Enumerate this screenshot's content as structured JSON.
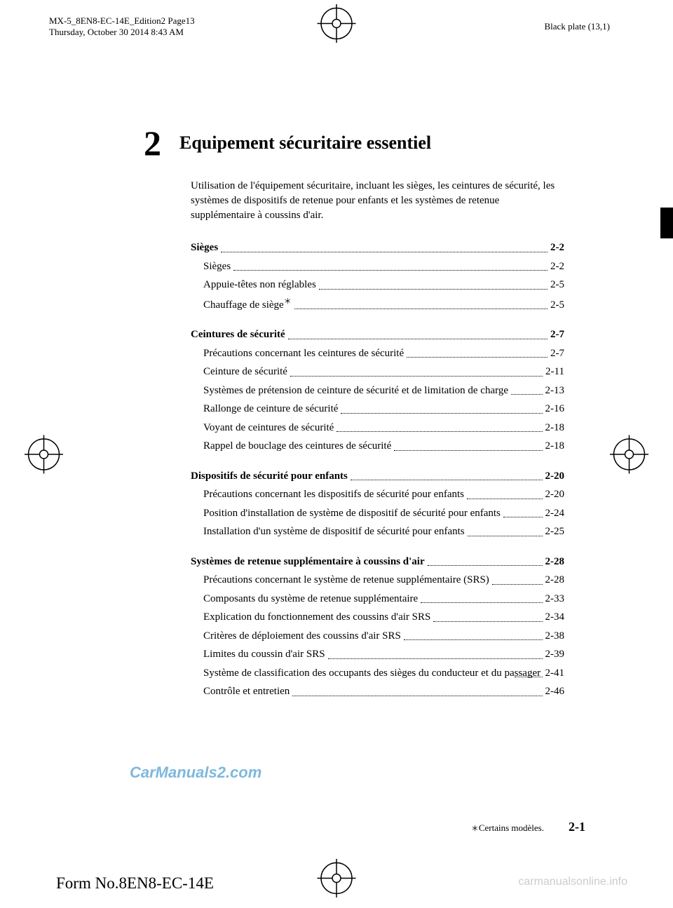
{
  "meta": {
    "line1": "MX-5_8EN8-EC-14E_Edition2 Page13",
    "line2": "Thursday, October 30 2014 8:43 AM",
    "black_plate": "Black plate (13,1)"
  },
  "chapter": {
    "number": "2",
    "title": "Equipement sécuritaire essentiel",
    "description": "Utilisation de l'équipement sécuritaire, incluant les sièges, les ceintures de sécurité, les systèmes de dispositifs de retenue pour enfants et les systèmes de retenue supplémentaire à coussins d'air."
  },
  "toc": {
    "sections": [
      {
        "heading": {
          "label": "Sièges",
          "page": "2-2"
        },
        "items": [
          {
            "label": "Sièges",
            "page": "2-2"
          },
          {
            "label": "Appuie-têtes non réglables",
            "page": "2-5"
          },
          {
            "label": "Chauffage de siège",
            "star": true,
            "page": "2-5"
          }
        ]
      },
      {
        "heading": {
          "label": "Ceintures de sécurité",
          "page": "2-7"
        },
        "items": [
          {
            "label": "Précautions concernant les ceintures de sécurité",
            "page": "2-7"
          },
          {
            "label": "Ceinture de sécurité",
            "page": "2-11"
          },
          {
            "label": "Systèmes de prétension de ceinture de sécurité et de limitation de charge",
            "page": "2-13",
            "wrap": true
          },
          {
            "label": "Rallonge de ceinture de sécurité",
            "page": "2-16"
          },
          {
            "label": "Voyant de ceintures de sécurité",
            "page": "2-18"
          },
          {
            "label": "Rappel de bouclage des ceintures de sécurité",
            "page": "2-18"
          }
        ]
      },
      {
        "heading": {
          "label": "Dispositifs de sécurité pour enfants",
          "page": "2-20"
        },
        "items": [
          {
            "label": "Précautions concernant les dispositifs de sécurité pour enfants",
            "page": "2-20",
            "wrap": true
          },
          {
            "label": "Position d'installation de système de dispositif de sécurité pour enfants",
            "page": "2-24",
            "wrap": true
          },
          {
            "label": "Installation d'un système de dispositif de sécurité pour enfants",
            "page": "2-25",
            "wrap": true
          }
        ]
      },
      {
        "heading": {
          "label": "Systèmes de retenue supplémentaire à coussins d'air",
          "page": "2-28"
        },
        "items": [
          {
            "label": "Précautions concernant le système de retenue supplémentaire (SRS)",
            "page": "2-28",
            "wrap": true
          },
          {
            "label": "Composants du système de retenue supplémentaire",
            "page": "2-33"
          },
          {
            "label": "Explication du fonctionnement des coussins d'air SRS",
            "page": "2-34"
          },
          {
            "label": "Critères de déploiement des coussins d'air SRS",
            "page": "2-38"
          },
          {
            "label": "Limites du coussin d'air SRS",
            "page": "2-39"
          },
          {
            "label": "Système de classification des occupants des sièges du conducteur et du passager",
            "page": "2-41",
            "wrap": true
          },
          {
            "label": "Contrôle et entretien",
            "page": "2-46"
          }
        ]
      }
    ]
  },
  "footnote": "Certains modèles.",
  "page_number": "2-1",
  "form_no": "Form No.8EN8-EC-14E",
  "watermarks": {
    "w1": "CarManuals2.com",
    "w2": "carmanualsonline.info"
  }
}
